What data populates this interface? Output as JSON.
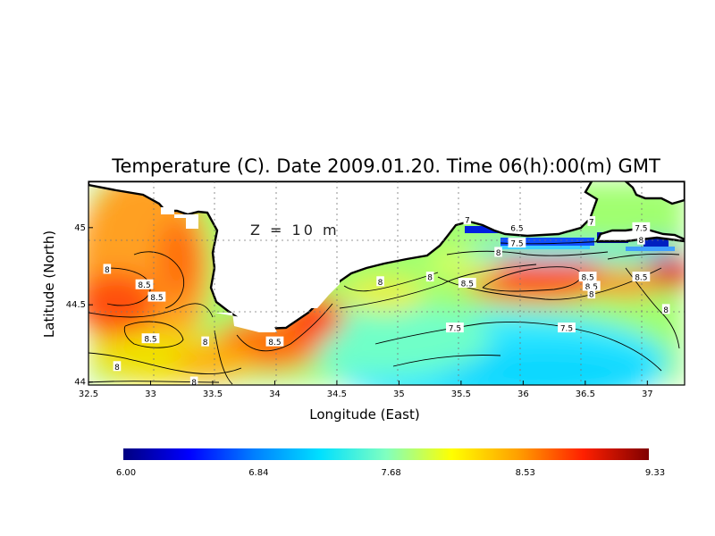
{
  "chart_data": {
    "type": "heatmap",
    "title": "Temperature (C). Date 2009.01.20. Time 06(h):00(m) GMT",
    "xlabel": "Longitude (East)",
    "ylabel": "Latitude (North)",
    "xlim": [
      32.5,
      37.3
    ],
    "ylim": [
      43.98,
      45.3
    ],
    "x_ticks": [
      "32.5",
      "33",
      "33.5",
      "34",
      "34.5",
      "35",
      "35.5",
      "36",
      "36.5",
      "37"
    ],
    "y_ticks": [
      "44",
      "44.5",
      "45"
    ],
    "annotation": "Z = 10 m",
    "grid": true,
    "colorbar": {
      "min": 6.0,
      "max": 9.33,
      "tick_labels": [
        "6.00",
        "6.84",
        "7.68",
        "8.53",
        "9.33"
      ],
      "colors": [
        "#000080",
        "#0000ff",
        "#0080ff",
        "#00e0ff",
        "#80ffc0",
        "#ffff00",
        "#ffa000",
        "#ff2000",
        "#800000"
      ]
    },
    "contour_labels": [
      {
        "text": "8",
        "lon": 32.65,
        "lat": 44.73
      },
      {
        "text": "8.5",
        "lon": 32.95,
        "lat": 44.63
      },
      {
        "text": "8.5",
        "lon": 33.05,
        "lat": 44.55
      },
      {
        "text": "8.5",
        "lon": 33.0,
        "lat": 44.28
      },
      {
        "text": "8",
        "lon": 33.44,
        "lat": 44.26
      },
      {
        "text": "8",
        "lon": 32.73,
        "lat": 44.1
      },
      {
        "text": "8",
        "lon": 33.35,
        "lat": 44.0
      },
      {
        "text": "8.5",
        "lon": 34.0,
        "lat": 44.26
      },
      {
        "text": "8",
        "lon": 34.85,
        "lat": 44.65
      },
      {
        "text": "8",
        "lon": 35.25,
        "lat": 44.68
      },
      {
        "text": "7",
        "lon": 35.55,
        "lat": 45.05
      },
      {
        "text": "6.5",
        "lon": 35.95,
        "lat": 45.0
      },
      {
        "text": "7.5",
        "lon": 35.95,
        "lat": 44.9
      },
      {
        "text": "8",
        "lon": 35.8,
        "lat": 44.84
      },
      {
        "text": "8.5",
        "lon": 35.55,
        "lat": 44.64
      },
      {
        "text": "7",
        "lon": 36.55,
        "lat": 45.04
      },
      {
        "text": "7.5",
        "lon": 36.95,
        "lat": 45.0
      },
      {
        "text": "8",
        "lon": 36.95,
        "lat": 44.92
      },
      {
        "text": "8.5",
        "lon": 36.52,
        "lat": 44.68
      },
      {
        "text": "8.5",
        "lon": 36.55,
        "lat": 44.62
      },
      {
        "text": "8",
        "lon": 36.55,
        "lat": 44.57
      },
      {
        "text": "8.5",
        "lon": 36.95,
        "lat": 44.68
      },
      {
        "text": "7.5",
        "lon": 35.45,
        "lat": 44.35
      },
      {
        "text": "7.5",
        "lon": 36.35,
        "lat": 44.35
      },
      {
        "text": "8",
        "lon": 37.15,
        "lat": 44.47
      }
    ]
  }
}
